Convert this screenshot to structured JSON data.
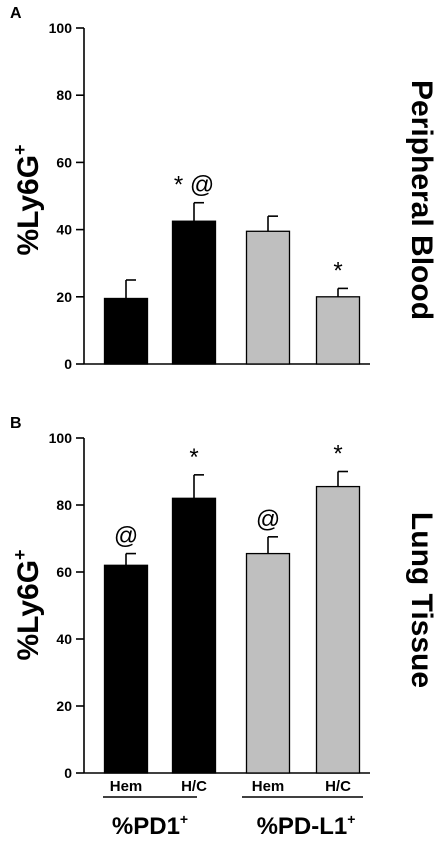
{
  "chart_data": [
    {
      "type": "bar",
      "panel_letter": "A",
      "side_title": "Peripheral Blood",
      "ylabel": "%Ly6G",
      "ylabel_sup": "+",
      "ylim": [
        0,
        100
      ],
      "yticks": [
        0,
        20,
        40,
        60,
        80,
        100
      ],
      "categories": [
        "Hem",
        "H/C",
        "Hem",
        "H/C"
      ],
      "values": [
        19.5,
        42.5,
        39.5,
        20
      ],
      "errors": [
        5.5,
        5.5,
        4.5,
        2.5
      ],
      "annotations": [
        "",
        "* @",
        "",
        "*"
      ],
      "bar_colors": [
        "#000000",
        "#000000",
        "#bfbfbf",
        "#bfbfbf"
      ],
      "show_category_labels": false
    },
    {
      "type": "bar",
      "panel_letter": "B",
      "side_title": "Lung Tissue",
      "ylabel": "%Ly6G",
      "ylabel_sup": "+",
      "ylim": [
        0,
        100
      ],
      "yticks": [
        0,
        20,
        40,
        60,
        80,
        100
      ],
      "categories": [
        "Hem",
        "H/C",
        "Hem",
        "H/C"
      ],
      "values": [
        62,
        82,
        65.5,
        85.5
      ],
      "errors": [
        3.5,
        7,
        5,
        4.5
      ],
      "annotations": [
        "@",
        "*",
        "@",
        "*"
      ],
      "bar_colors": [
        "#000000",
        "#000000",
        "#bfbfbf",
        "#bfbfbf"
      ],
      "show_category_labels": true
    }
  ],
  "groups": [
    {
      "label": "%PD1",
      "sup": "+"
    },
    {
      "label": "%PD-L1",
      "sup": "+"
    }
  ]
}
